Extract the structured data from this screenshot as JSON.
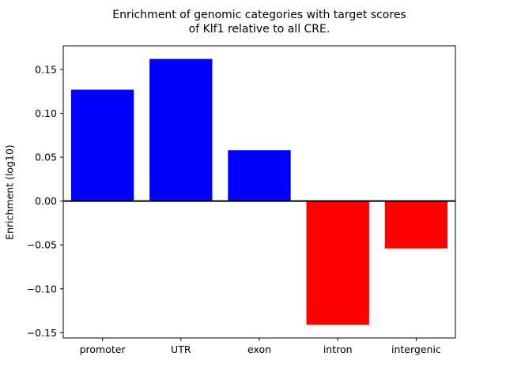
{
  "chart_data": {
    "type": "bar",
    "title": "Enrichment of genomic categories with target scores\nof Klf1 relative to all CRE.",
    "xlabel": "",
    "ylabel": "Enrichment (log10)",
    "categories": [
      "promoter",
      "UTR",
      "exon",
      "intron",
      "intergenic"
    ],
    "values": [
      0.127,
      0.162,
      0.058,
      -0.141,
      -0.054
    ],
    "ylim": [
      -0.156,
      0.177
    ],
    "yticks": [
      -0.15,
      -0.1,
      -0.05,
      0.0,
      0.05,
      0.1,
      0.15
    ],
    "grid": false,
    "legend": "none",
    "positive_color": "#0000ff",
    "negative_color": "#ff0000",
    "zero_line_color": "#000000",
    "axes_color": "#000000",
    "background_color": "#ffffff"
  }
}
